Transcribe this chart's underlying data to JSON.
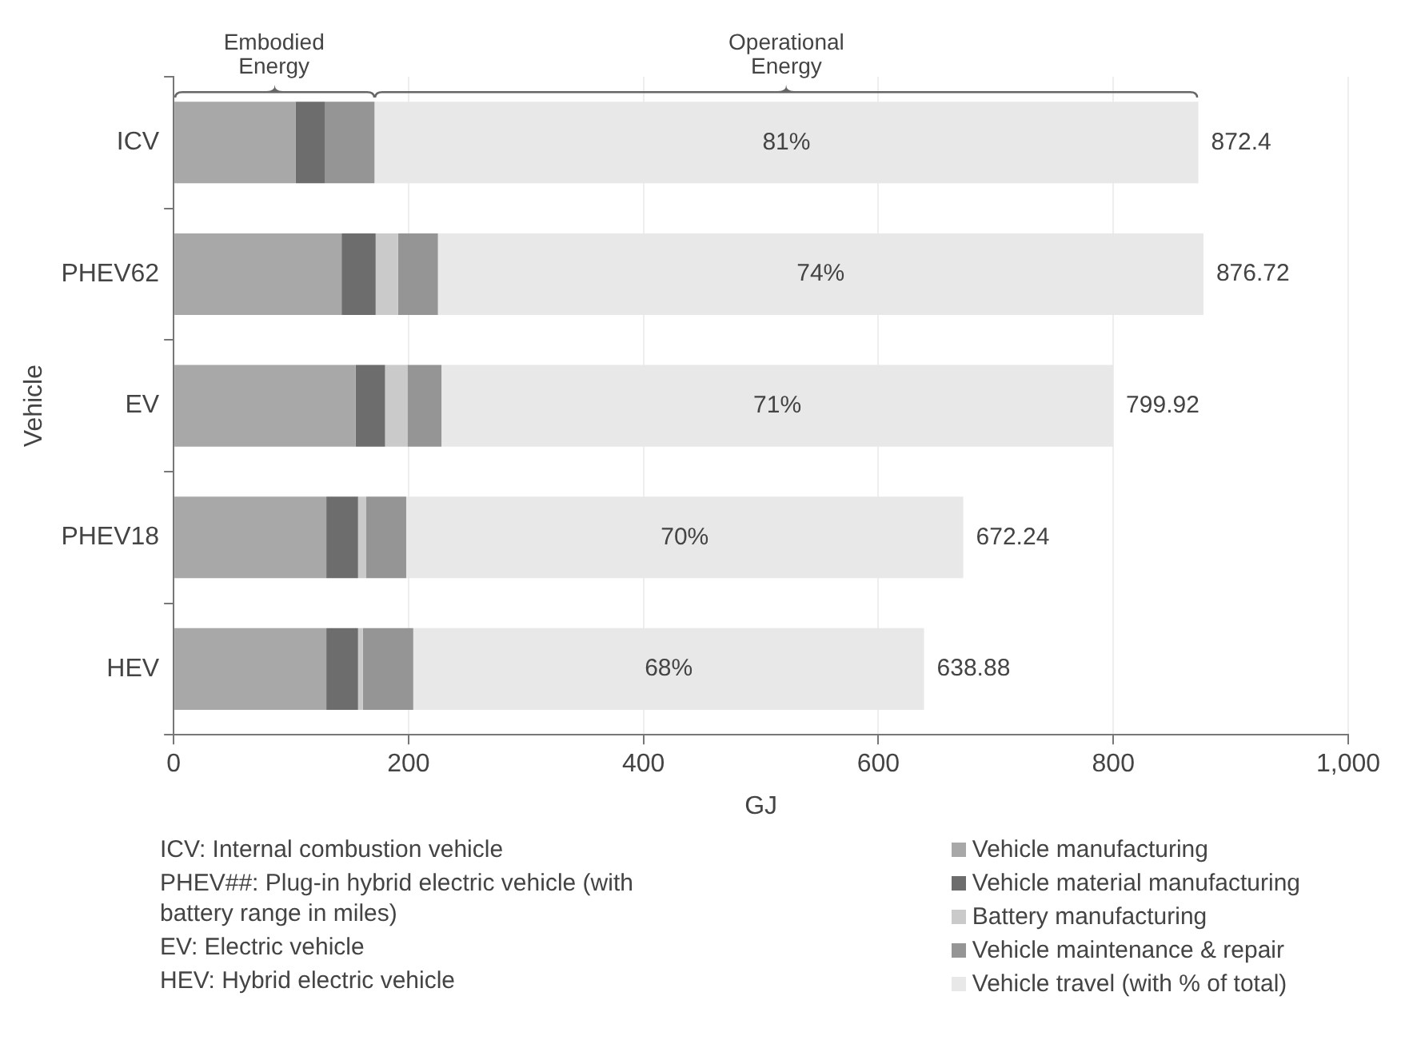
{
  "chart_data": {
    "type": "bar",
    "orientation": "horizontal",
    "stacked": true,
    "categories": [
      "ICV",
      "PHEV62",
      "EV",
      "PHEV18",
      "HEV"
    ],
    "series": [
      {
        "name": "Vehicle manufacturing",
        "color": "#a8a8a8",
        "values": [
          104,
          143,
          155,
          130,
          130
        ]
      },
      {
        "name": "Vehicle material manufacturing",
        "color": "#6d6d6d",
        "values": [
          25,
          29,
          25,
          27,
          27
        ]
      },
      {
        "name": "Battery manufacturing",
        "color": "#cacaca",
        "values": [
          0,
          19,
          19,
          7,
          4
        ]
      },
      {
        "name": "Vehicle maintenance & repair",
        "color": "#959595",
        "values": [
          42,
          34,
          29,
          34,
          43
        ]
      },
      {
        "name": "Vehicle travel (with % of total)",
        "color": "#e8e8e8",
        "values": [
          701.4,
          651.72,
          571.92,
          474.24,
          434.88
        ]
      }
    ],
    "totals": [
      "872.4",
      "876.72",
      "799.92",
      "672.24",
      "638.88"
    ],
    "xlim": [
      0,
      1000
    ],
    "xticks": [
      0,
      200,
      400,
      600,
      {
        "value": 800,
        "label": "800"
      },
      {
        "value": 1000,
        "label": "1,000"
      }
    ],
    "xlabel": "GJ",
    "ylabel": "Vehicle",
    "grid": "x",
    "legend": "bottom right",
    "annotations": [
      "Embodied Energy",
      "Operational Energy",
      "81%",
      "74%",
      "71%",
      "70%",
      "68%",
      "ICV: Internal combustion vehicle",
      "PHEV##: Plug-in hybrid electric vehicle (with battery range in miles)",
      "EV: Electric vehicle",
      "HEV: Hybrid electric vehicle"
    ]
  }
}
